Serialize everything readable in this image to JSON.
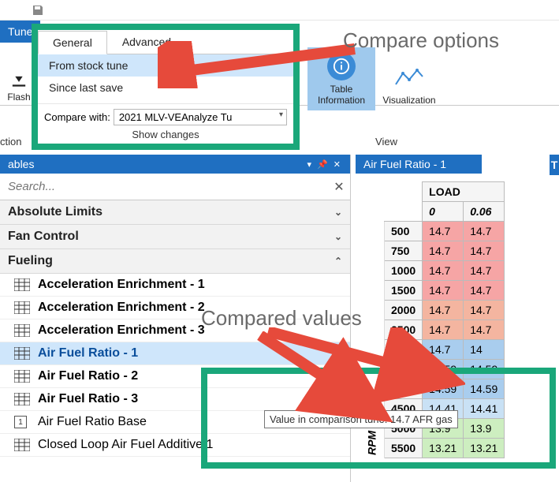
{
  "colors": {
    "accent": "#1f6fc1",
    "highlight": "#cfe6fb",
    "callout_border": "#1aa77a",
    "arrow": "#e64a3b",
    "anno_text": "#6a6a6a",
    "cell_red": "#f6a5a5",
    "cell_red2": "#f4b5a0",
    "cell_blue": "#a9cdee",
    "cell_blue2": "#c9e1f5",
    "cell_green": "#cdeec0"
  },
  "ribbon": {
    "main_tab": "Tune",
    "flash_label": "Flash",
    "table_info_label": "Table Information",
    "visualization_label": "Visualization",
    "view_group": "View",
    "left_group_trunc": "ction"
  },
  "compare": {
    "tab_general": "General",
    "tab_advanced": "Advanced",
    "item_from_stock": "From stock tune",
    "item_since_save": "Since last save",
    "compare_with_label": "Compare with:",
    "compare_with_value": "2021 MLV-VEAnalyze Tu",
    "show_changes": "Show changes"
  },
  "left_panel": {
    "title": "ables",
    "title_pins": "▾ 📌 ✕",
    "search_placeholder": "Search...",
    "sections": {
      "absolute_limits": "Absolute Limits",
      "fan_control": "Fan Control",
      "fueling": "Fueling"
    },
    "tables": [
      "Acceleration Enrichment - 1",
      "Acceleration Enrichment - 2",
      "Acceleration Enrichment - 3",
      "Air Fuel Ratio - 1",
      "Air Fuel Ratio - 2",
      "Air Fuel Ratio - 3",
      "Air Fuel Ratio Base",
      "Closed Loop Air Fuel Additive 1"
    ],
    "selected_index": 3
  },
  "right_panel": {
    "title": "Air Fuel Ratio - 1",
    "t_tab": "T",
    "axis_load": "LOAD",
    "axis_rpm": "RPM",
    "load_cols": [
      "0",
      "0.06"
    ],
    "rows": [
      {
        "rpm": "500",
        "v": [
          "14.7",
          "14.7"
        ],
        "c": [
          "cell-r",
          "cell-r"
        ]
      },
      {
        "rpm": "750",
        "v": [
          "14.7",
          "14.7"
        ],
        "c": [
          "cell-r",
          "cell-r"
        ]
      },
      {
        "rpm": "1000",
        "v": [
          "14.7",
          "14.7"
        ],
        "c": [
          "cell-r",
          "cell-r"
        ]
      },
      {
        "rpm": "1500",
        "v": [
          "14.7",
          "14.7"
        ],
        "c": [
          "cell-r",
          "cell-r"
        ]
      },
      {
        "rpm": "2000",
        "v": [
          "14.7",
          "14.7"
        ],
        "c": [
          "cell-r2",
          "cell-r2"
        ]
      },
      {
        "rpm": "2500",
        "v": [
          "14.7",
          "14.7"
        ],
        "c": [
          "cell-r2",
          "cell-r2"
        ]
      },
      {
        "rpm": "3000",
        "v": [
          "14.7",
          "14"
        ],
        "c": [
          "cell-b",
          "cell-b"
        ]
      },
      {
        "rpm": "3500",
        "v": [
          "14.59",
          "14.59"
        ],
        "c": [
          "cell-b",
          "cell-b"
        ]
      },
      {
        "rpm": "4000",
        "v": [
          "14.59",
          "14.59"
        ],
        "c": [
          "cell-b",
          "cell-b"
        ]
      },
      {
        "rpm": "4500",
        "v": [
          "14.41",
          "14.41"
        ],
        "c": [
          "cell-b2",
          "cell-b2"
        ]
      },
      {
        "rpm": "5000",
        "v": [
          "13.9",
          "13.9"
        ],
        "c": [
          "cell-g",
          "cell-g"
        ]
      },
      {
        "rpm": "5500",
        "v": [
          "13.21",
          "13.21"
        ],
        "c": [
          "cell-g",
          "cell-g"
        ]
      }
    ]
  },
  "tooltip": "Value in comparison tune: 14.7 AFR gas",
  "annotations": {
    "compare_options": "Compare options",
    "compared_values": "Compared values"
  }
}
